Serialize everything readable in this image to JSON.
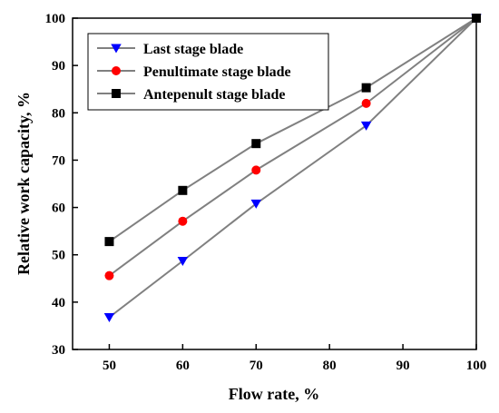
{
  "chart_data": {
    "type": "line",
    "xlabel": "Flow rate, %",
    "ylabel": "Relative work capacity, %",
    "xlim": [
      45,
      100
    ],
    "ylim": [
      30,
      100
    ],
    "x_ticks": [
      50,
      60,
      70,
      80,
      90,
      100
    ],
    "y_ticks": [
      30,
      40,
      50,
      60,
      70,
      80,
      90,
      100
    ],
    "grid": false,
    "legend_position": "top-left",
    "x": [
      50,
      60,
      70,
      85,
      100
    ],
    "series": [
      {
        "name": "Last stage blade",
        "marker": "triangle-down",
        "color": "#0000ff",
        "values": [
          36.8,
          48.7,
          60.8,
          77.3,
          100
        ]
      },
      {
        "name": "Penultimate stage blade",
        "marker": "circle",
        "color": "#ff0000",
        "values": [
          45.6,
          57.1,
          67.9,
          82.0,
          100
        ]
      },
      {
        "name": "Antepenult stage blade",
        "marker": "square",
        "color": "#000000",
        "values": [
          52.8,
          63.6,
          73.5,
          85.3,
          100
        ]
      }
    ],
    "line_color": "#808080"
  }
}
